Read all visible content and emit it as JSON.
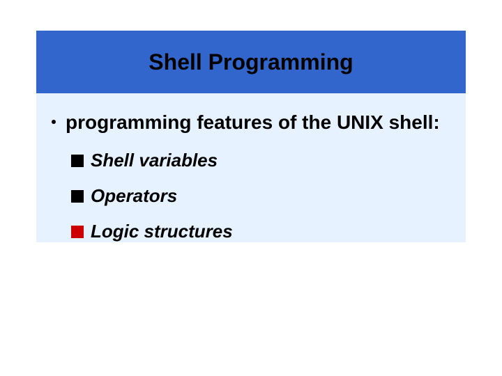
{
  "slide": {
    "title": "Shell Programming",
    "title_fontsize": 32,
    "title_bar_bg": "#3366cc",
    "body_bg": "#e6f2ff",
    "bullets_l1": [
      {
        "text": "programming features of the UNIX shell:"
      }
    ],
    "bullets_l2": [
      {
        "text": "Shell variables",
        "marker_color": "#000000"
      },
      {
        "text": "Operators",
        "marker_color": "#000000"
      },
      {
        "text": "Logic structures",
        "marker_color": "#cc0000"
      }
    ],
    "l1_fontsize": 28,
    "l1_color": "#000000",
    "l2_fontsize": 26,
    "l2_color": "#000000"
  }
}
